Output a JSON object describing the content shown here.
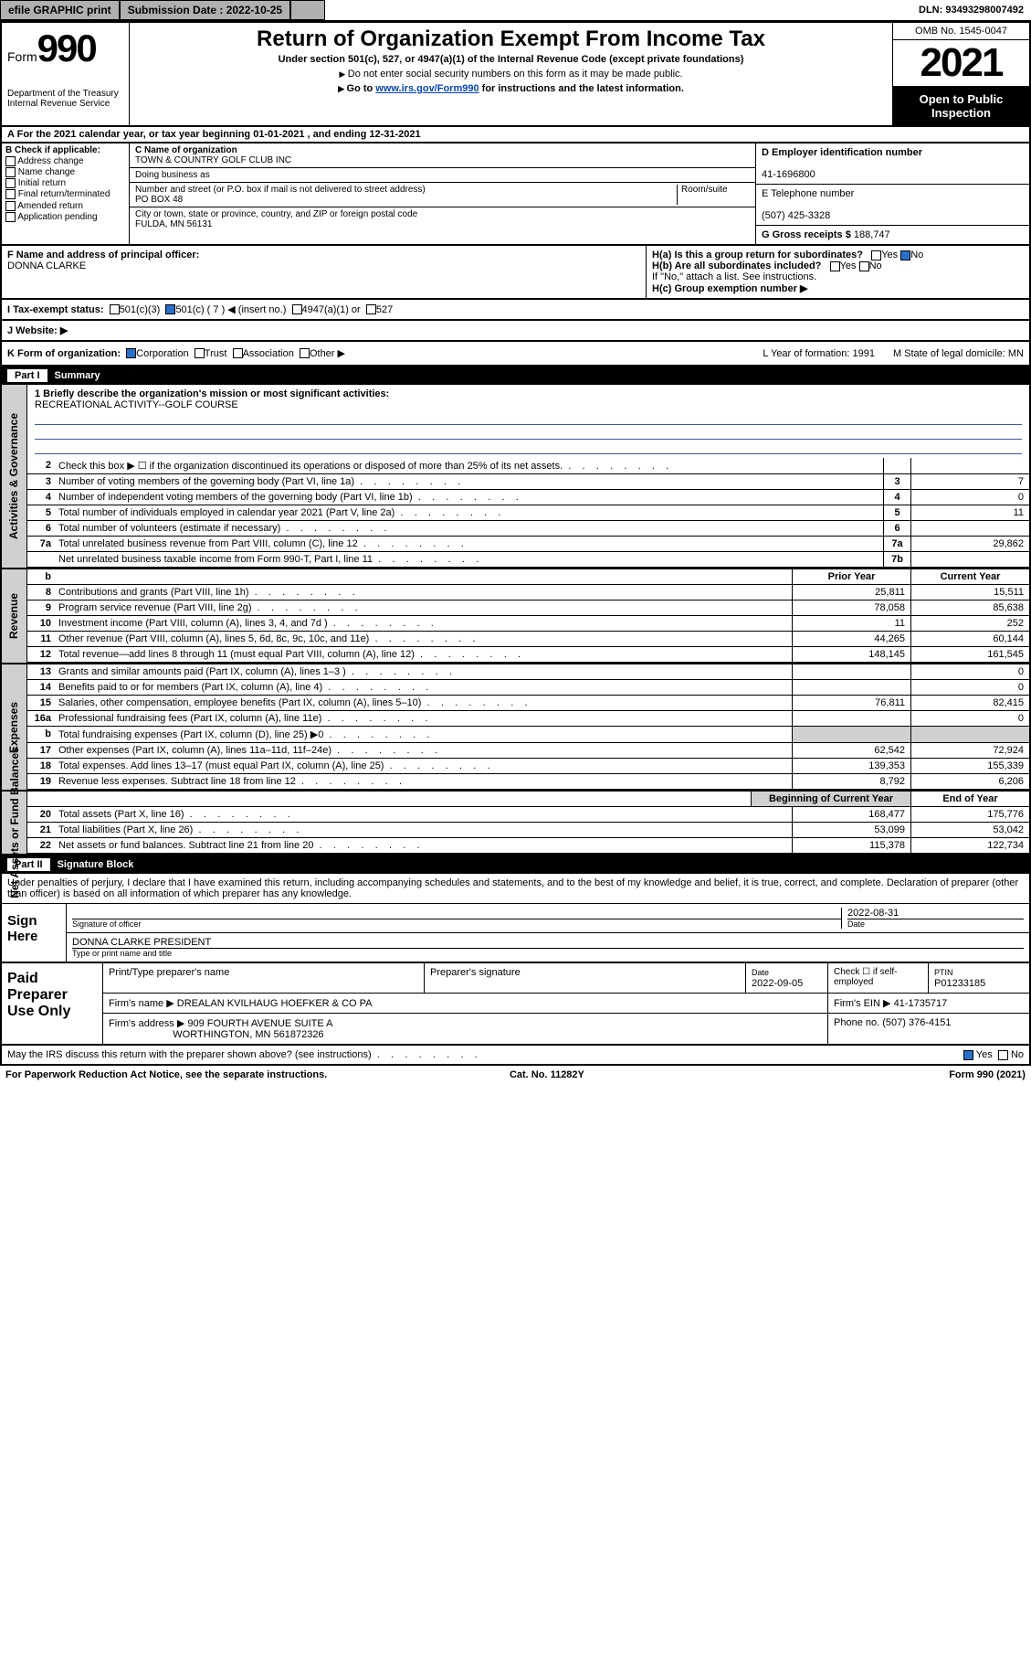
{
  "topbar": {
    "efile": "efile GRAPHIC print",
    "submission_label": "Submission Date : 2022-10-25",
    "dln": "DLN: 93493298007492"
  },
  "header": {
    "form_word": "Form",
    "form_num": "990",
    "dept": "Department of the Treasury Internal Revenue Service",
    "title": "Return of Organization Exempt From Income Tax",
    "sub1": "Under section 501(c), 527, or 4947(a)(1) of the Internal Revenue Code (except private foundations)",
    "sub2": "Do not enter social security numbers on this form as it may be made public.",
    "sub3_pre": "Go to ",
    "sub3_link": "www.irs.gov/Form990",
    "sub3_post": " for instructions and the latest information.",
    "omb": "OMB No. 1545-0047",
    "year": "2021",
    "opi": "Open to Public Inspection"
  },
  "row_a": "For the 2021 calendar year, or tax year beginning 01-01-2021   , and ending 12-31-2021",
  "box_b": {
    "label": "B Check if applicable:",
    "items": [
      "Address change",
      "Name change",
      "Initial return",
      "Final return/terminated",
      "Amended return",
      "Application pending"
    ]
  },
  "box_c": {
    "name_label": "C Name of organization",
    "name": "TOWN & COUNTRY GOLF CLUB INC",
    "dba_label": "Doing business as",
    "addr_label": "Number and street (or P.O. box if mail is not delivered to street address)",
    "room_label": "Room/suite",
    "addr": "PO BOX 48",
    "city_label": "City or town, state or province, country, and ZIP or foreign postal code",
    "city": "FULDA, MN  56131"
  },
  "box_d": {
    "label": "D Employer identification number",
    "value": "41-1696800"
  },
  "box_e": {
    "label": "E Telephone number",
    "value": "(507) 425-3328"
  },
  "box_g": {
    "label": "G Gross receipts $",
    "value": "188,747"
  },
  "box_f": {
    "label": "F Name and address of principal officer:",
    "value": "DONNA CLARKE"
  },
  "box_h": {
    "ha": "H(a)  Is this a group return for subordinates?",
    "hb": "H(b)  Are all subordinates included?",
    "hb_note": "If \"No,\" attach a list. See instructions.",
    "hc": "H(c)  Group exemption number ▶",
    "yes": "Yes",
    "no": "No"
  },
  "box_i": {
    "label": "I   Tax-exempt status:",
    "o1": "501(c)(3)",
    "o2": "501(c) ( 7 ) ◀ (insert no.)",
    "o3": "4947(a)(1) or",
    "o4": "527"
  },
  "box_j": "J   Website: ▶",
  "box_k": {
    "label": "K Form of organization:",
    "o1": "Corporation",
    "o2": "Trust",
    "o3": "Association",
    "o4": "Other ▶",
    "l": "L Year of formation: 1991",
    "m": "M State of legal domicile: MN"
  },
  "part1": {
    "label": "Part I",
    "title": "Summary"
  },
  "mission": {
    "q": "1   Briefly describe the organization's mission or most significant activities:",
    "a": "RECREATIONAL ACTIVITY--GOLF COURSE"
  },
  "sidetabs": {
    "gov": "Activities & Governance",
    "rev": "Revenue",
    "exp": "Expenses",
    "net": "Net Assets or Fund Balances"
  },
  "lines_gov": [
    {
      "n": "2",
      "t": "Check this box ▶ ☐  if the organization discontinued its operations or disposed of more than 25% of its net assets."
    },
    {
      "n": "3",
      "t": "Number of voting members of the governing body (Part VI, line 1a)",
      "nc": "3",
      "v": "7"
    },
    {
      "n": "4",
      "t": "Number of independent voting members of the governing body (Part VI, line 1b)",
      "nc": "4",
      "v": "0"
    },
    {
      "n": "5",
      "t": "Total number of individuals employed in calendar year 2021 (Part V, line 2a)",
      "nc": "5",
      "v": "11"
    },
    {
      "n": "6",
      "t": "Total number of volunteers (estimate if necessary)",
      "nc": "6",
      "v": ""
    },
    {
      "n": "7a",
      "t": "Total unrelated business revenue from Part VIII, column (C), line 12",
      "nc": "7a",
      "v": "29,862"
    },
    {
      "n": "",
      "t": "Net unrelated business taxable income from Form 990-T, Part I, line 11",
      "nc": "7b",
      "v": ""
    }
  ],
  "col_hdr": {
    "n": "b",
    "prior": "Prior Year",
    "current": "Current Year"
  },
  "lines_rev": [
    {
      "n": "8",
      "t": "Contributions and grants (Part VIII, line 1h)",
      "p": "25,811",
      "c": "15,511"
    },
    {
      "n": "9",
      "t": "Program service revenue (Part VIII, line 2g)",
      "p": "78,058",
      "c": "85,638"
    },
    {
      "n": "10",
      "t": "Investment income (Part VIII, column (A), lines 3, 4, and 7d )",
      "p": "11",
      "c": "252"
    },
    {
      "n": "11",
      "t": "Other revenue (Part VIII, column (A), lines 5, 6d, 8c, 9c, 10c, and 11e)",
      "p": "44,265",
      "c": "60,144"
    },
    {
      "n": "12",
      "t": "Total revenue—add lines 8 through 11 (must equal Part VIII, column (A), line 12)",
      "p": "148,145",
      "c": "161,545"
    }
  ],
  "lines_exp": [
    {
      "n": "13",
      "t": "Grants and similar amounts paid (Part IX, column (A), lines 1–3 )",
      "p": "",
      "c": "0"
    },
    {
      "n": "14",
      "t": "Benefits paid to or for members (Part IX, column (A), line 4)",
      "p": "",
      "c": "0"
    },
    {
      "n": "15",
      "t": "Salaries, other compensation, employee benefits (Part IX, column (A), lines 5–10)",
      "p": "76,811",
      "c": "82,415"
    },
    {
      "n": "16a",
      "t": "Professional fundraising fees (Part IX, column (A), line 11e)",
      "p": "",
      "c": "0"
    },
    {
      "n": "b",
      "t": "Total fundraising expenses (Part IX, column (D), line 25) ▶0",
      "p": "GRAY",
      "c": "GRAY"
    },
    {
      "n": "17",
      "t": "Other expenses (Part IX, column (A), lines 11a–11d, 11f–24e)",
      "p": "62,542",
      "c": "72,924"
    },
    {
      "n": "18",
      "t": "Total expenses. Add lines 13–17 (must equal Part IX, column (A), line 25)",
      "p": "139,353",
      "c": "155,339"
    },
    {
      "n": "19",
      "t": "Revenue less expenses. Subtract line 18 from line 12",
      "p": "8,792",
      "c": "6,206"
    }
  ],
  "net_hdr": {
    "b": "Beginning of Current Year",
    "e": "End of Year"
  },
  "lines_net": [
    {
      "n": "20",
      "t": "Total assets (Part X, line 16)",
      "p": "168,477",
      "c": "175,776"
    },
    {
      "n": "21",
      "t": "Total liabilities (Part X, line 26)",
      "p": "53,099",
      "c": "53,042"
    },
    {
      "n": "22",
      "t": "Net assets or fund balances. Subtract line 21 from line 20",
      "p": "115,378",
      "c": "122,734"
    }
  ],
  "part2": {
    "label": "Part II",
    "title": "Signature Block"
  },
  "sig": {
    "decl": "Under penalties of perjury, I declare that I have examined this return, including accompanying schedules and statements, and to the best of my knowledge and belief, it is true, correct, and complete. Declaration of preparer (other than officer) is based on all information of which preparer has any knowledge.",
    "sign_here": "Sign Here",
    "sig_of_officer": "Signature of officer",
    "date_label": "Date",
    "date": "2022-08-31",
    "name": "DONNA CLARKE  PRESIDENT",
    "type_label": "Type or print name and title"
  },
  "paid": {
    "label": "Paid Preparer Use Only",
    "h1": "Print/Type preparer's name",
    "h2": "Preparer's signature",
    "h3": "Date",
    "date": "2022-09-05",
    "h4": "Check ☐ if self-employed",
    "h5": "PTIN",
    "ptin": "P01233185",
    "firm_name_l": "Firm's name    ▶",
    "firm_name": "DREALAN KVILHAUG HOEFKER & CO PA",
    "firm_ein_l": "Firm's EIN ▶",
    "firm_ein": "41-1735717",
    "firm_addr_l": "Firm's address ▶",
    "firm_addr1": "909 FOURTH AVENUE SUITE A",
    "firm_addr2": "WORTHINGTON, MN  561872326",
    "phone_l": "Phone no.",
    "phone": "(507) 376-4151"
  },
  "discuss": {
    "t": "May the IRS discuss this return with the preparer shown above? (see instructions)",
    "yes": "Yes",
    "no": "No"
  },
  "bottom": {
    "pra": "For Paperwork Reduction Act Notice, see the separate instructions.",
    "cat": "Cat. No. 11282Y",
    "form": "Form 990 (2021)"
  }
}
